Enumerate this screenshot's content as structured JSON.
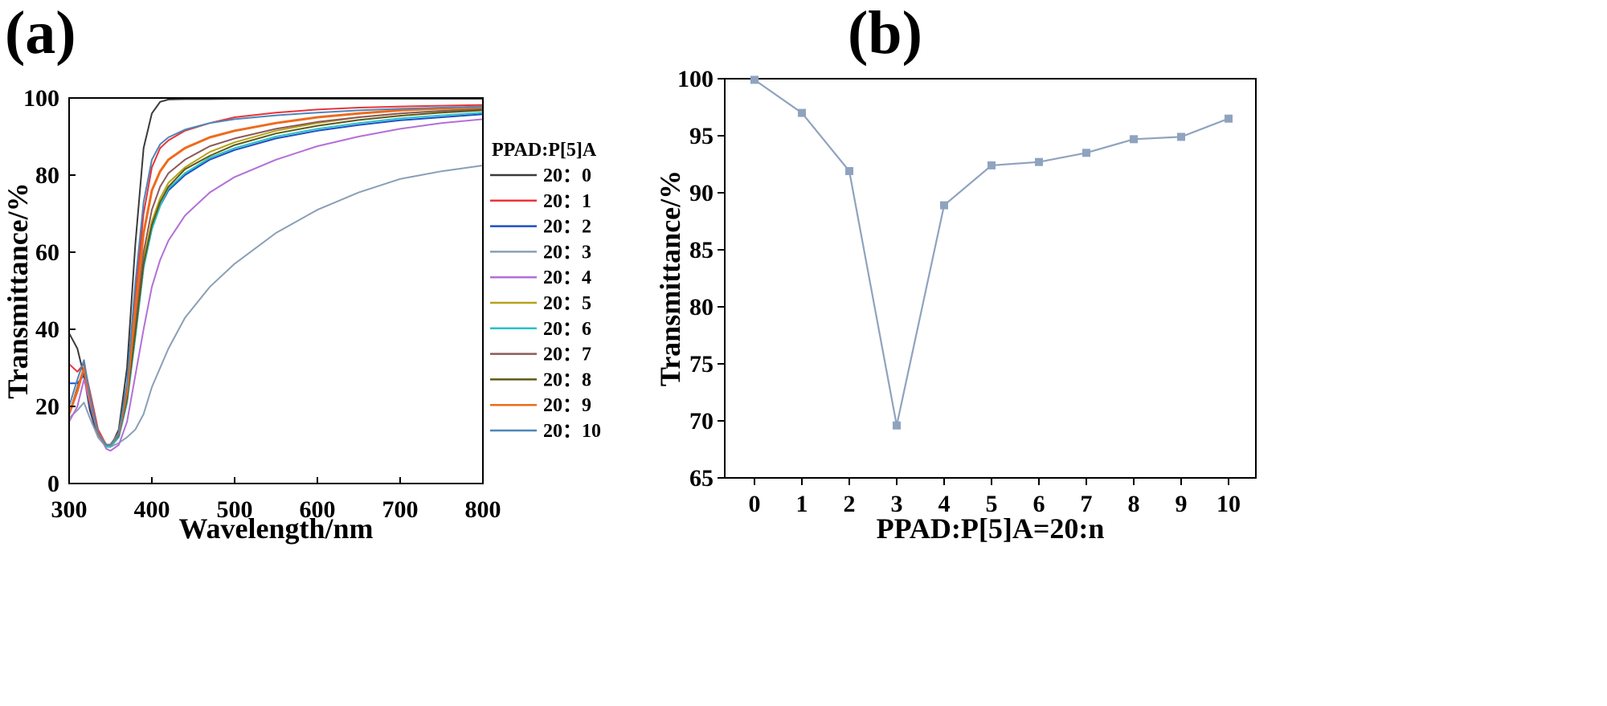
{
  "panels": {
    "a_label": "(a)",
    "b_label": "(b)"
  },
  "chart_data": [
    {
      "type": "line",
      "title": "",
      "xlabel": "Wavelength/nm",
      "ylabel": "Transmittance/%",
      "xlim": [
        300,
        800
      ],
      "ylim": [
        0,
        100
      ],
      "xticks": [
        300,
        400,
        500,
        600,
        700,
        800
      ],
      "yticks": [
        0,
        20,
        40,
        60,
        80,
        100
      ],
      "legend_title": "PPAD:P[5]A",
      "legend_position": "right",
      "x": [
        300,
        310,
        318,
        325,
        335,
        345,
        350,
        360,
        370,
        380,
        390,
        400,
        410,
        420,
        440,
        470,
        500,
        550,
        600,
        650,
        700,
        750,
        800
      ],
      "series": [
        {
          "name": "20：0",
          "color": "#3a3a3a",
          "values": [
            39,
            35,
            28,
            19,
            12,
            9.5,
            9.5,
            14,
            30,
            62,
            87,
            96,
            99,
            99.6,
            99.7,
            99.7,
            99.8,
            99.8,
            99.8,
            99.8,
            99.8,
            99.8,
            99.8
          ]
        },
        {
          "name": "20：1",
          "color": "#e8343b",
          "values": [
            31,
            29,
            31,
            24,
            14,
            10,
            10,
            13,
            24,
            48,
            70,
            82,
            87,
            89,
            91.5,
            93.5,
            95,
            96.2,
            97,
            97.5,
            97.8,
            98,
            98.2
          ]
        },
        {
          "name": "20：2",
          "color": "#1f4ec8",
          "values": [
            26,
            26,
            28,
            20,
            12,
            9.5,
            9.5,
            12,
            21,
            38,
            56,
            66,
            72,
            76,
            80,
            84,
            86.5,
            89.5,
            91.5,
            93,
            94.2,
            95,
            95.8
          ]
        },
        {
          "name": "20：3",
          "color": "#8a9fb6",
          "values": [
            17,
            19,
            21,
            17,
            12,
            9.5,
            9.5,
            10.5,
            12,
            14,
            18,
            25,
            30,
            35,
            43,
            51,
            57,
            65,
            71,
            75.5,
            79,
            81,
            82.5
          ]
        },
        {
          "name": "20：4",
          "color": "#b46fd6",
          "values": [
            16,
            20,
            27,
            21,
            13,
            9,
            8.5,
            10,
            16,
            28,
            40,
            51,
            58,
            63,
            69.5,
            75.5,
            79.5,
            84,
            87.5,
            90,
            92,
            93.5,
            94.5
          ]
        },
        {
          "name": "20：5",
          "color": "#b5a219",
          "values": [
            18,
            24,
            30,
            22,
            13,
            10,
            10,
            12.5,
            22,
            40,
            58,
            68,
            74,
            78,
            82,
            86,
            88.5,
            91.5,
            93.5,
            95,
            96,
            96.7,
            97.3
          ]
        },
        {
          "name": "20：6",
          "color": "#26c2c8",
          "values": [
            18,
            24,
            30,
            22,
            13,
            9.5,
            9.5,
            12,
            21,
            38,
            56,
            66,
            72,
            76.5,
            80.5,
            84.5,
            87,
            90,
            92,
            93.5,
            94.7,
            95.5,
            96.2
          ]
        },
        {
          "name": "20：7",
          "color": "#8b5a5a",
          "values": [
            18,
            25,
            30,
            22,
            13,
            10,
            10,
            12.5,
            22,
            41,
            60,
            71,
            77,
            80.5,
            84,
            87.5,
            89.5,
            92,
            93.8,
            95,
            96,
            96.6,
            97.1
          ]
        },
        {
          "name": "20：8",
          "color": "#5e5a18",
          "values": [
            18,
            24,
            30,
            22,
            13,
            10,
            10,
            12.5,
            22,
            39,
            57,
            67,
            73,
            77,
            81.5,
            85,
            87.8,
            90.8,
            92.8,
            94.3,
            95.4,
            96.2,
            96.8
          ]
        },
        {
          "name": "20：9",
          "color": "#ee6b1c",
          "values": [
            18,
            24,
            30,
            22,
            13,
            10,
            10,
            13,
            24,
            45,
            65,
            76,
            81,
            84,
            87,
            89.8,
            91.5,
            93.5,
            95,
            96,
            96.8,
            97.3,
            97.7
          ]
        },
        {
          "name": "20：10",
          "color": "#4e86b8",
          "values": [
            20,
            27,
            32,
            23,
            13,
            10,
            10,
            13,
            26,
            52,
            73,
            84,
            88,
            89.8,
            91.8,
            93.5,
            94.5,
            95.5,
            96.2,
            96.8,
            97.2,
            97.5,
            97.8
          ]
        }
      ]
    },
    {
      "type": "line",
      "title": "",
      "xlabel": "PPAD:P[5]A=20:n",
      "ylabel": "Transmittance/%",
      "ylim": [
        65,
        100
      ],
      "yticks": [
        65,
        70,
        75,
        80,
        85,
        90,
        95,
        100
      ],
      "categories": [
        "0",
        "1",
        "2",
        "3",
        "4",
        "5",
        "6",
        "7",
        "8",
        "9",
        "10"
      ],
      "series": [
        {
          "name": "Transmittance",
          "color": "#8fa3bf",
          "marker": "square",
          "values": [
            99.9,
            97.0,
            91.9,
            69.6,
            88.9,
            92.4,
            92.7,
            93.5,
            94.7,
            94.9,
            96.5
          ]
        }
      ]
    }
  ]
}
